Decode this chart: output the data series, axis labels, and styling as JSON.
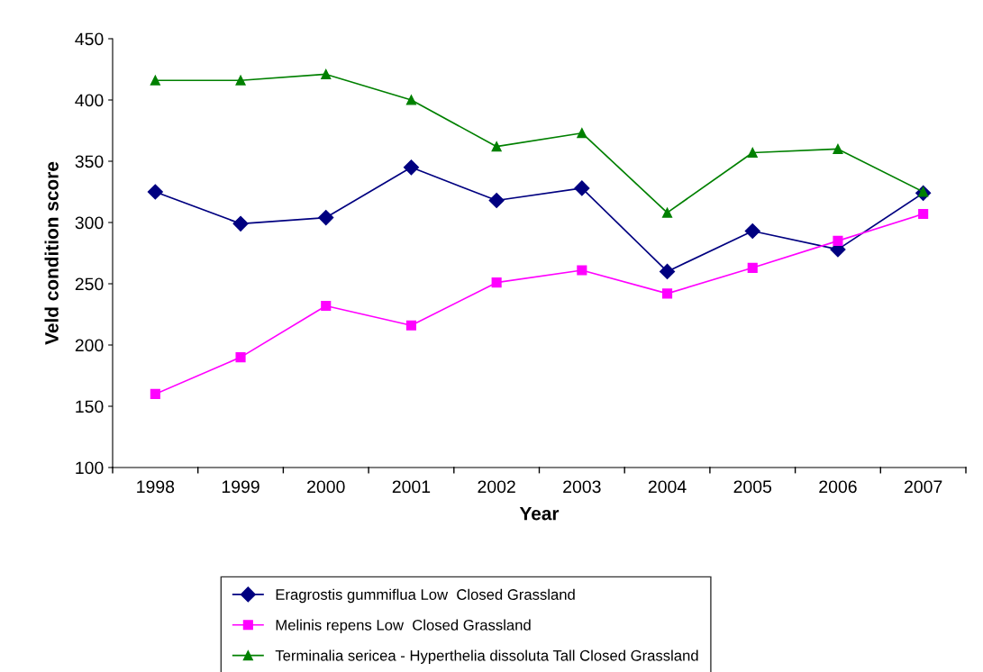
{
  "chart_data": {
    "type": "line",
    "xlabel": "Year",
    "ylabel": "Veld condition score",
    "categories": [
      "1998",
      "1999",
      "2000",
      "2001",
      "2002",
      "2003",
      "2004",
      "2005",
      "2006",
      "2007"
    ],
    "ylim": [
      100,
      450
    ],
    "yticks": [
      100,
      150,
      200,
      250,
      300,
      350,
      400,
      450
    ],
    "grid": false,
    "legend": "bottom",
    "line_style": "solid",
    "series": [
      {
        "name": "Eragrostis gummiflua Low  Closed Grassland",
        "color": "#000080",
        "marker": "diamond",
        "values": [
          325,
          299,
          304,
          345,
          318,
          328,
          260,
          293,
          278,
          324
        ]
      },
      {
        "name": "Melinis repens Low  Closed Grassland",
        "color": "#ff00ff",
        "marker": "square",
        "values": [
          160,
          190,
          232,
          216,
          251,
          261,
          242,
          263,
          285,
          307
        ]
      },
      {
        "name": "Terminalia sericea - Hyperthelia dissoluta Tall Closed Grassland",
        "color": "#008000",
        "marker": "triangle",
        "values": [
          416,
          416,
          421,
          400,
          362,
          373,
          308,
          357,
          360,
          325
        ]
      }
    ]
  }
}
